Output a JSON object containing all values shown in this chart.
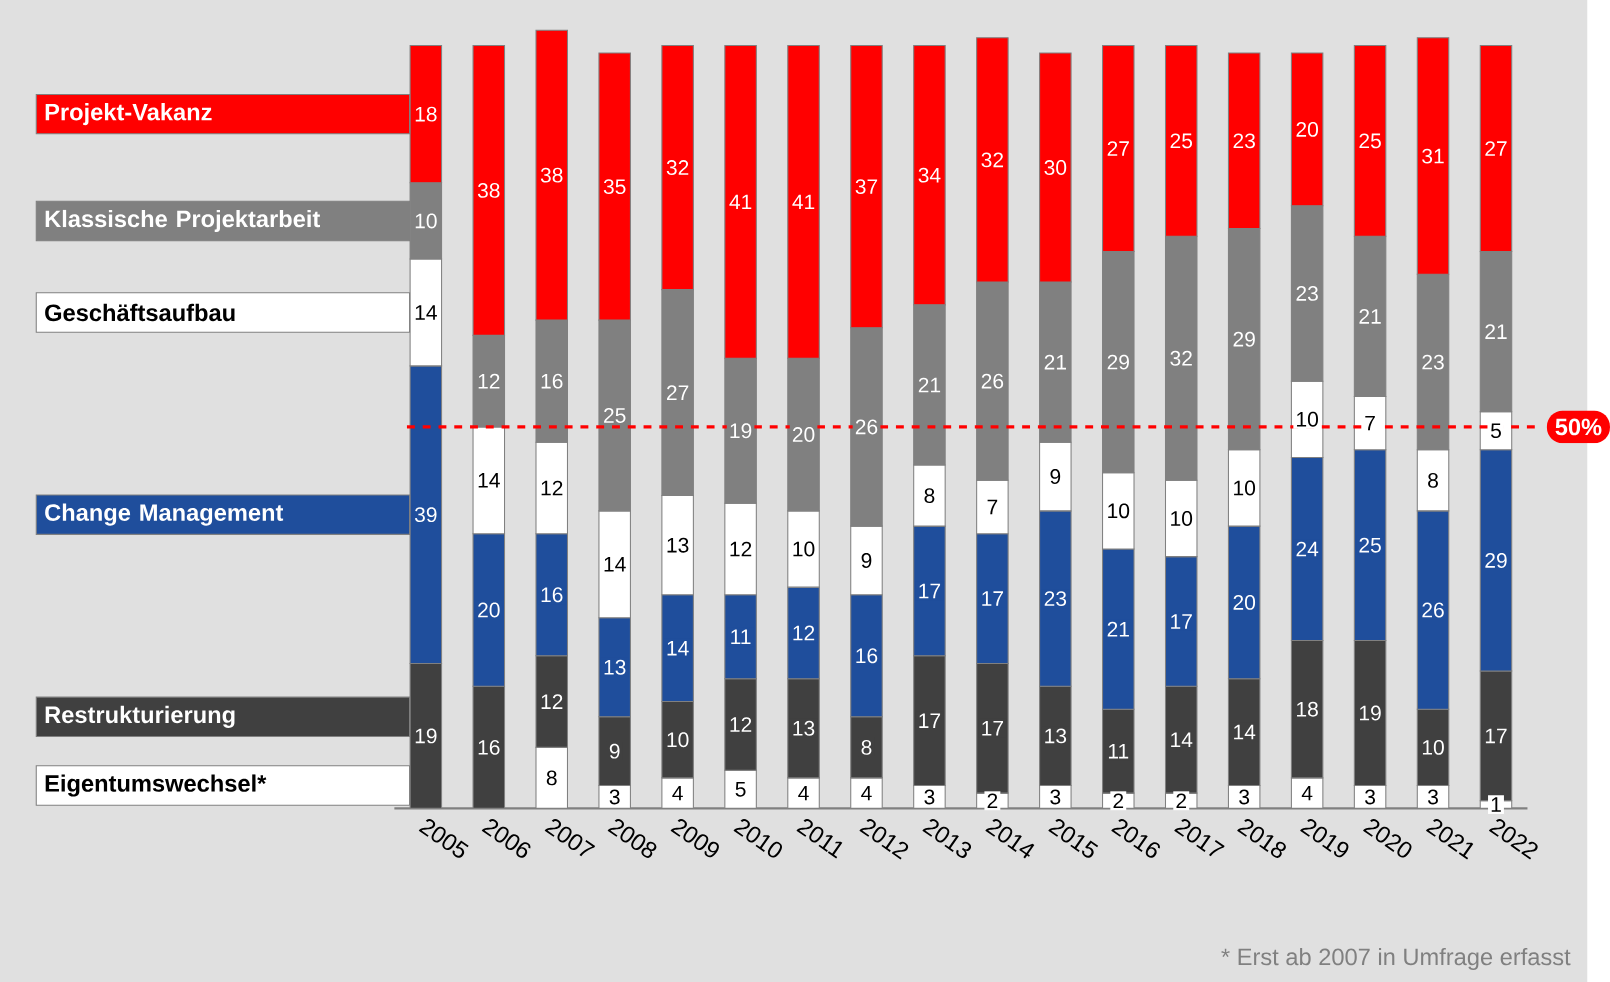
{
  "chart_data": {
    "type": "bar",
    "stacked": true,
    "data_labels": true,
    "legend": "left",
    "tick_labels": "x",
    "ylim": [
      0,
      102
    ],
    "categories": [
      "2005",
      "2006",
      "2007",
      "2008",
      "2009",
      "2010",
      "2011",
      "2012",
      "2013",
      "2014",
      "2015",
      "2016",
      "2017",
      "2018",
      "2019",
      "2020",
      "2021",
      "2022"
    ],
    "series": [
      {
        "name": "Eigentumswechsel*",
        "color": "#ffffff",
        "values": [
          null,
          null,
          8,
          3,
          4,
          5,
          4,
          4,
          3,
          2,
          3,
          2,
          2,
          3,
          4,
          3,
          3,
          1
        ]
      },
      {
        "name": "Restrukturierung",
        "color": "#404040",
        "values": [
          19,
          16,
          12,
          9,
          10,
          12,
          13,
          8,
          17,
          17,
          13,
          11,
          14,
          14,
          18,
          19,
          10,
          17
        ]
      },
      {
        "name": "Change Management",
        "color": "#1f4e9c",
        "values": [
          39,
          20,
          16,
          13,
          14,
          11,
          12,
          16,
          17,
          17,
          23,
          21,
          17,
          20,
          24,
          25,
          26,
          29
        ]
      },
      {
        "name": "Geschäftsaufbau",
        "color": "#ffffff",
        "values": [
          14,
          14,
          12,
          14,
          13,
          12,
          10,
          9,
          8,
          7,
          9,
          10,
          10,
          10,
          10,
          7,
          8,
          5
        ]
      },
      {
        "name": "Klassische Projektarbeit",
        "color": "#808080",
        "values": [
          10,
          12,
          16,
          25,
          27,
          19,
          20,
          26,
          21,
          26,
          21,
          29,
          32,
          29,
          23,
          21,
          23,
          21
        ]
      },
      {
        "name": "Projekt-Vakanz",
        "color": "#ff0000",
        "values": [
          18,
          38,
          38,
          35,
          32,
          41,
          41,
          37,
          34,
          32,
          30,
          27,
          25,
          23,
          20,
          25,
          31,
          27
        ]
      }
    ],
    "ref_lines": [
      {
        "axis": "y",
        "value": 50,
        "label": "50%",
        "color": "#ff0000",
        "line_style": "dashed"
      }
    ],
    "annotations": [
      "* Erst ab 2007 in Umfrage erfasst"
    ]
  }
}
